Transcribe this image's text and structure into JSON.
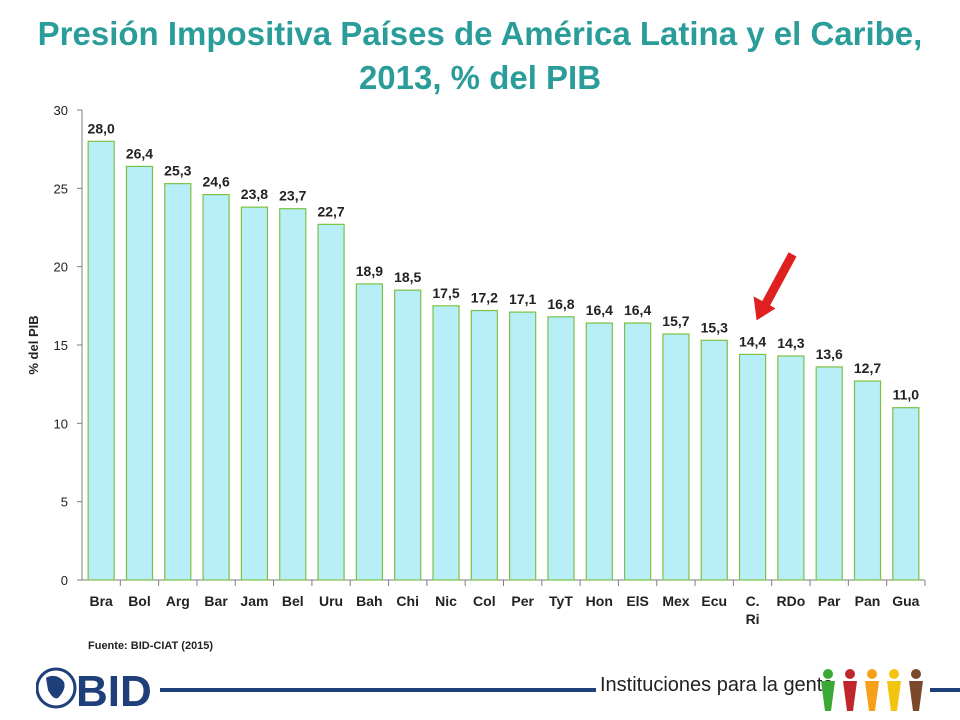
{
  "title": "Presión Impositiva Países de América Latina y el Caribe, 2013, % del PIB",
  "source": "Fuente: BID-CIAT (2015)",
  "footer": {
    "logo_text": "BID",
    "tagline": "Instituciones para la gente",
    "people_colors": [
      "#3aa935",
      "#c0272d",
      "#f7a11a",
      "#f2c40f",
      "#7b4a2b"
    ]
  },
  "colors": {
    "bar_fill": "#b7eef8",
    "bar_stroke": "#7cc242",
    "title": "#2a9d9a",
    "arrow": "#e02020"
  },
  "chart_data": {
    "type": "bar",
    "title": "Presión Impositiva Países de América Latina y el Caribe, 2013, % del PIB",
    "xlabel": "",
    "ylabel": "% del PIB",
    "ylim": [
      0,
      30
    ],
    "yticks": [
      0,
      5,
      10,
      15,
      20,
      25,
      30
    ],
    "grid": false,
    "categories": [
      "Bra",
      "Bol",
      "Arg",
      "Bar",
      "Jam",
      "Bel",
      "Uru",
      "Bah",
      "Chi",
      "Nic",
      "Col",
      "Per",
      "TyT",
      "Hon",
      "ElS",
      "Mex",
      "Ecu",
      "C. Ri",
      "RDo",
      "Par",
      "Pan",
      "Gua"
    ],
    "values": [
      28.0,
      26.4,
      25.3,
      24.6,
      23.8,
      23.7,
      22.7,
      18.9,
      18.5,
      17.5,
      17.2,
      17.1,
      16.8,
      16.4,
      16.4,
      15.7,
      15.3,
      14.4,
      14.3,
      13.6,
      12.7,
      11.0
    ],
    "data_labels": [
      "28,0",
      "26,4",
      "25,3",
      "24,6",
      "23,8",
      "23,7",
      "22,7",
      "18,9",
      "18,5",
      "17,5",
      "17,2",
      "17,1",
      "16,8",
      "16,4",
      "16,4",
      "15,7",
      "15,3",
      "14,4",
      "14,3",
      "13,6",
      "12,7",
      "11,0"
    ],
    "highlight_category": "C. Ri"
  }
}
